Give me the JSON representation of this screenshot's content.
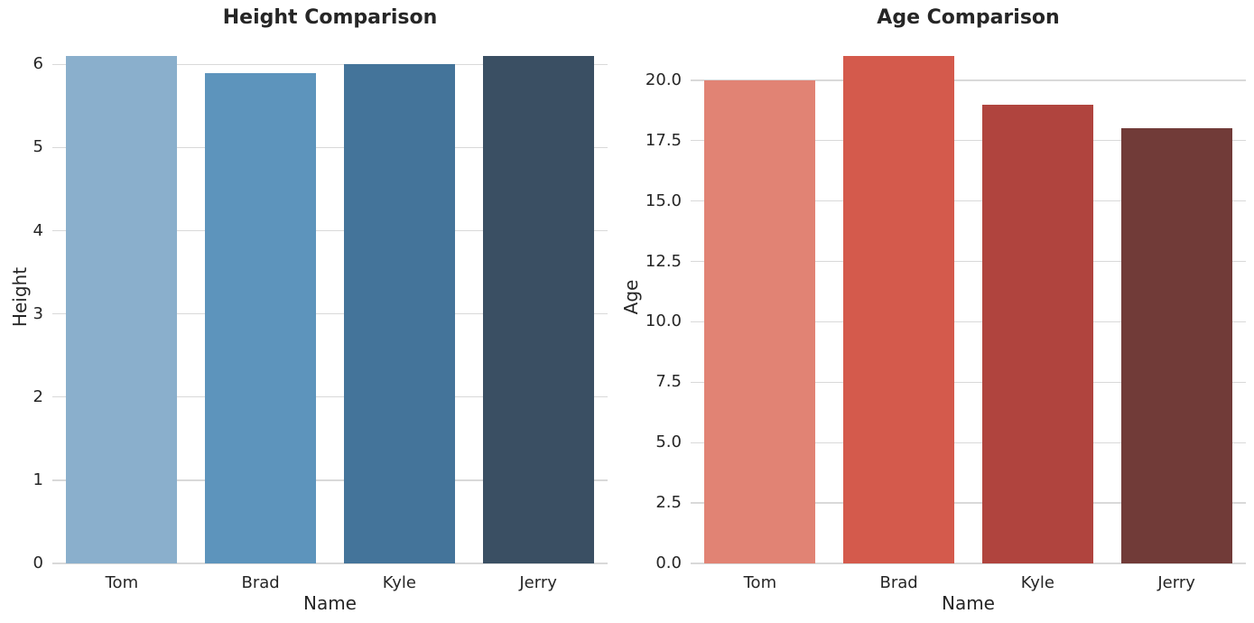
{
  "figure": {
    "background": "#ffffff",
    "grid_color": "#d9d9d9",
    "text_color": "#262626"
  },
  "chart_data": [
    {
      "type": "bar",
      "title": "Height Comparison",
      "xlabel": "Name",
      "ylabel": "Height",
      "categories": [
        "Tom",
        "Brad",
        "Kyle",
        "Jerry"
      ],
      "values": [
        6.1,
        5.9,
        6.0,
        6.1
      ],
      "bar_colors": [
        "#8aafcc",
        "#5d94bc",
        "#44749a",
        "#3a4f63"
      ],
      "ylim": [
        0,
        6.405
      ],
      "grid": true,
      "legend": null,
      "yticks": [
        {
          "value": 0,
          "label": "0"
        },
        {
          "value": 1,
          "label": "1"
        },
        {
          "value": 2,
          "label": "2"
        },
        {
          "value": 3,
          "label": "3"
        },
        {
          "value": 4,
          "label": "4"
        },
        {
          "value": 5,
          "label": "5"
        },
        {
          "value": 6,
          "label": "6"
        }
      ]
    },
    {
      "type": "bar",
      "title": "Age Comparison",
      "xlabel": "Name",
      "ylabel": "Age",
      "categories": [
        "Tom",
        "Brad",
        "Kyle",
        "Jerry"
      ],
      "values": [
        20,
        21,
        19,
        18
      ],
      "bar_colors": [
        "#e18374",
        "#d45a4c",
        "#b0443e",
        "#713b38"
      ],
      "ylim": [
        0,
        22.05
      ],
      "grid": true,
      "legend": null,
      "yticks": [
        {
          "value": 0,
          "label": "0.0"
        },
        {
          "value": 2.5,
          "label": "2.5"
        },
        {
          "value": 5,
          "label": "5.0"
        },
        {
          "value": 7.5,
          "label": "7.5"
        },
        {
          "value": 10,
          "label": "10.0"
        },
        {
          "value": 12.5,
          "label": "12.5"
        },
        {
          "value": 15,
          "label": "15.0"
        },
        {
          "value": 17.5,
          "label": "17.5"
        },
        {
          "value": 20,
          "label": "20.0"
        }
      ]
    }
  ]
}
